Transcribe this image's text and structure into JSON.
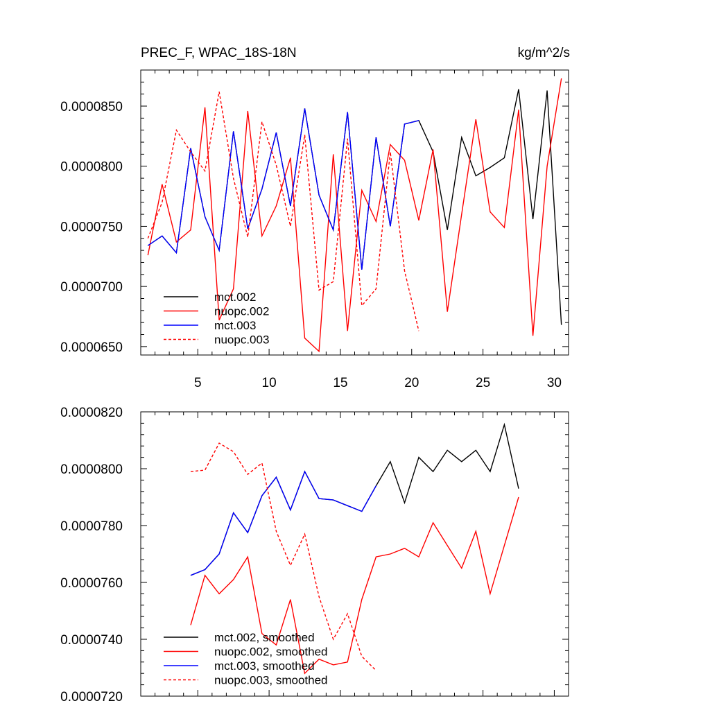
{
  "chart_data": [
    {
      "type": "line",
      "title": "PREC_F, WPAC_18S-18N",
      "units": "kg/m^2/s",
      "xlim": [
        1,
        31
      ],
      "ylim": [
        6.43e-05,
        8.8e-05
      ],
      "xticks": [
        5,
        10,
        15,
        20,
        25,
        30
      ],
      "xtick_labels": [
        "5",
        "10",
        "15",
        "20",
        "25",
        "30"
      ],
      "yticks": [
        6.5e-05,
        7e-05,
        7.5e-05,
        8e-05,
        8.5e-05
      ],
      "ytick_labels": [
        "0.0000650",
        "0.0000700",
        "0.0000750",
        "0.0000800",
        "0.0000850"
      ],
      "legend_position": "bottom-left",
      "series": [
        {
          "name": "mct.002",
          "color": "#000000",
          "dash": "solid",
          "x": [
            1.5,
            2.5,
            3.5,
            4.5,
            5.5,
            6.5,
            7.5,
            8.5,
            9.5,
            10.5,
            11.5,
            12.5,
            13.5,
            14.5,
            15.5,
            16.5,
            17.5,
            18.5,
            19.5,
            20.5,
            21.5,
            22.5,
            23.5,
            24.5,
            25.5,
            26.5,
            27.5,
            28.5,
            29.5,
            30.5
          ],
          "values": [
            7.34e-05,
            7.42e-05,
            7.28e-05,
            8.15e-05,
            7.58e-05,
            7.3e-05,
            8.29e-05,
            7.48e-05,
            7.81e-05,
            8.28e-05,
            7.67e-05,
            8.48e-05,
            7.76e-05,
            7.47e-05,
            8.45e-05,
            7.14e-05,
            8.24e-05,
            7.5e-05,
            8.35e-05,
            8.38e-05,
            8.12e-05,
            7.47e-05,
            8.24e-05,
            7.92e-05,
            7.99e-05,
            8.07e-05,
            8.64e-05,
            7.56e-05,
            8.63e-05,
            6.68e-05
          ]
        },
        {
          "name": "nuopc.002",
          "color": "#ff0000",
          "dash": "solid",
          "x": [
            1.5,
            2.5,
            3.5,
            4.5,
            5.5,
            6.5,
            7.5,
            8.5,
            9.5,
            10.5,
            11.5,
            12.5,
            13.5,
            14.5,
            15.5,
            16.5,
            17.5,
            18.5,
            19.5,
            20.5,
            21.5,
            22.5,
            23.5,
            24.5,
            25.5,
            26.5,
            27.5,
            28.5,
            29.5,
            30.5
          ],
          "values": [
            7.26e-05,
            7.85e-05,
            7.37e-05,
            7.47e-05,
            8.49e-05,
            6.72e-05,
            6.98e-05,
            8.46e-05,
            7.42e-05,
            7.67e-05,
            8.07e-05,
            6.57e-05,
            6.46e-05,
            8.1e-05,
            6.63e-05,
            7.8e-05,
            7.54e-05,
            8.18e-05,
            8.05e-05,
            7.55e-05,
            8.14e-05,
            6.79e-05,
            7.6e-05,
            8.39e-05,
            7.62e-05,
            7.49e-05,
            8.47e-05,
            6.59e-05,
            8e-05,
            8.73e-05
          ]
        },
        {
          "name": "mct.003",
          "color": "#0000ff",
          "dash": "solid",
          "x": [
            1.5,
            2.5,
            3.5,
            4.5,
            5.5,
            6.5,
            7.5,
            8.5,
            9.5,
            10.5,
            11.5,
            12.5,
            13.5,
            14.5,
            15.5,
            16.5,
            17.5,
            18.5,
            19.5,
            20.5
          ],
          "values": [
            7.34e-05,
            7.42e-05,
            7.28e-05,
            8.15e-05,
            7.58e-05,
            7.3e-05,
            8.29e-05,
            7.48e-05,
            7.81e-05,
            8.28e-05,
            7.67e-05,
            8.48e-05,
            7.76e-05,
            7.47e-05,
            8.45e-05,
            7.14e-05,
            8.24e-05,
            7.5e-05,
            8.35e-05,
            8.38e-05
          ]
        },
        {
          "name": "nuopc.003",
          "color": "#ff0000",
          "dash": "dashed",
          "x": [
            1.5,
            2.5,
            3.5,
            4.5,
            5.5,
            6.5,
            7.5,
            8.5,
            9.5,
            10.5,
            11.5,
            12.5,
            13.5,
            14.5,
            15.5,
            16.5,
            17.5,
            18.5,
            19.5,
            20.5
          ],
          "values": [
            7.4e-05,
            7.7e-05,
            8.3e-05,
            8.12e-05,
            7.96e-05,
            8.62e-05,
            7.9e-05,
            7.41e-05,
            8.37e-05,
            8.01e-05,
            7.5e-05,
            8.26e-05,
            6.97e-05,
            7.04e-05,
            8.23e-05,
            6.84e-05,
            6.98e-05,
            8.12e-05,
            7.13e-05,
            6.63e-05
          ]
        }
      ]
    },
    {
      "type": "line",
      "title": "",
      "xlim": [
        1,
        31
      ],
      "ylim": [
        7.2e-05,
        8.2e-05
      ],
      "xticks": [
        5,
        10,
        15,
        20,
        25,
        30
      ],
      "yticks": [
        7.2e-05,
        7.4e-05,
        7.6e-05,
        7.8e-05,
        8e-05,
        8.2e-05
      ],
      "ytick_labels": [
        "0.0000720",
        "0.0000740",
        "0.0000760",
        "0.0000780",
        "0.0000800",
        "0.0000820"
      ],
      "legend_position": "bottom-left",
      "series": [
        {
          "name": "mct.002, smoothed",
          "color": "#000000",
          "dash": "solid",
          "x": [
            4.5,
            5.5,
            6.5,
            7.5,
            8.5,
            9.5,
            10.5,
            11.5,
            12.5,
            13.5,
            14.5,
            15.5,
            16.5,
            17.5,
            18.5,
            19.5,
            20.5,
            21.5,
            22.5,
            23.5,
            24.5,
            25.5,
            26.5,
            27.5
          ],
          "values": [
            7.625e-05,
            7.645e-05,
            7.7e-05,
            7.845e-05,
            7.775e-05,
            7.905e-05,
            7.97e-05,
            7.855e-05,
            7.99e-05,
            7.895e-05,
            7.89e-05,
            7.87e-05,
            7.85e-05,
            7.94e-05,
            8.025e-05,
            7.88e-05,
            8.04e-05,
            7.99e-05,
            8.065e-05,
            8.025e-05,
            8.065e-05,
            7.99e-05,
            8.155e-05,
            7.93e-05
          ]
        },
        {
          "name": "nuopc.002, smoothed",
          "color": "#ff0000",
          "dash": "solid",
          "x": [
            4.5,
            5.5,
            6.5,
            7.5,
            8.5,
            9.5,
            10.5,
            11.5,
            12.5,
            13.5,
            14.5,
            15.5,
            16.5,
            17.5,
            18.5,
            19.5,
            20.5,
            21.5,
            22.5,
            23.5,
            24.5,
            25.5,
            26.5,
            27.5
          ],
          "values": [
            7.45e-05,
            7.625e-05,
            7.56e-05,
            7.61e-05,
            7.69e-05,
            7.42e-05,
            7.38e-05,
            7.54e-05,
            7.28e-05,
            7.33e-05,
            7.31e-05,
            7.32e-05,
            7.54e-05,
            7.69e-05,
            7.7e-05,
            7.72e-05,
            7.69e-05,
            7.81e-05,
            7.73e-05,
            7.65e-05,
            7.78e-05,
            7.56e-05,
            7.73e-05,
            7.9e-05
          ]
        },
        {
          "name": "mct.003, smoothed",
          "color": "#0000ff",
          "dash": "solid",
          "x": [
            4.5,
            5.5,
            6.5,
            7.5,
            8.5,
            9.5,
            10.5,
            11.5,
            12.5,
            13.5,
            14.5,
            15.5,
            16.5,
            17.5
          ],
          "values": [
            7.625e-05,
            7.645e-05,
            7.7e-05,
            7.845e-05,
            7.775e-05,
            7.905e-05,
            7.97e-05,
            7.855e-05,
            7.99e-05,
            7.895e-05,
            7.89e-05,
            7.87e-05,
            7.85e-05,
            7.94e-05
          ]
        },
        {
          "name": "nuopc.003, smoothed",
          "color": "#ff0000",
          "dash": "dashed",
          "x": [
            4.5,
            5.5,
            6.5,
            7.5,
            8.5,
            9.5,
            10.5,
            11.5,
            12.5,
            13.5,
            14.5,
            15.5,
            16.5,
            17.5
          ],
          "values": [
            7.99e-05,
            7.995e-05,
            8.09e-05,
            8.06e-05,
            7.98e-05,
            8.02e-05,
            7.78e-05,
            7.66e-05,
            7.77e-05,
            7.55e-05,
            7.4e-05,
            7.49e-05,
            7.34e-05,
            7.29e-05
          ]
        }
      ]
    }
  ]
}
